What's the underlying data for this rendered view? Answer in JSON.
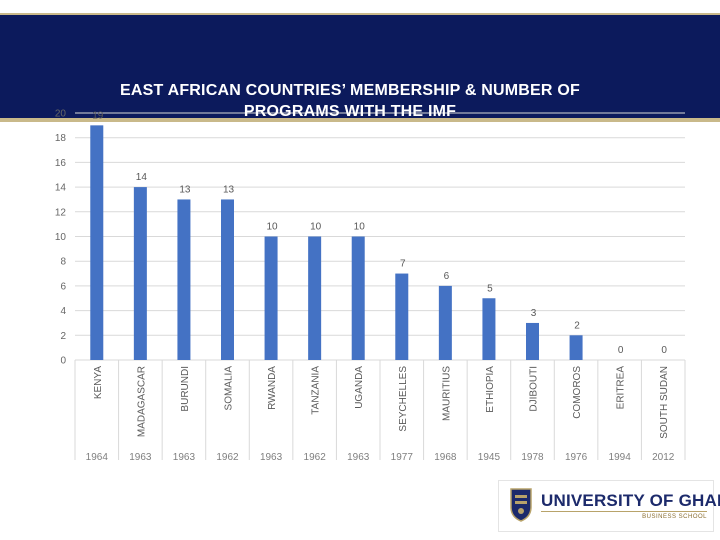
{
  "slide": {
    "colors": {
      "banner": "#0c1a5c",
      "bar": "#4472c4",
      "accent": "#c9b98a"
    }
  },
  "logo": {
    "name": "UNIVERSITY OF GHANA",
    "subtitle": "BUSINESS SCHOOL"
  },
  "chart_data": {
    "type": "bar",
    "title": "EAST AFRICAN COUNTRIES’ MEMBERSHIP & NUMBER OF PROGRAMS WITH THE IMF",
    "categories": [
      "KENYA",
      "MADAGASCAR",
      "BURUNDI",
      "SOMALIA",
      "RWANDA",
      "TANZANIA",
      "UGANDA",
      "SEYCHELLES",
      "MAURITIUS",
      "ETHIOPIA",
      "DJIBOUTI",
      "COMOROS",
      "ERITREA",
      "SOUTH SUDAN"
    ],
    "values": [
      19,
      14,
      13,
      13,
      10,
      10,
      10,
      7,
      6,
      5,
      3,
      2,
      0,
      0
    ],
    "value_labels": [
      "19",
      "14",
      "13",
      "13",
      "10",
      "10",
      "10",
      "7",
      "6",
      "5",
      "3",
      "2",
      "0",
      "0"
    ],
    "membership_years": [
      "1964",
      "1963",
      "1963",
      "1962",
      "1963",
      "1962",
      "1963",
      "1977",
      "1968",
      "1945",
      "1978",
      "1976",
      "1994",
      "2012"
    ],
    "ylim": [
      0,
      20
    ],
    "yticks": [
      "0",
      "2",
      "4",
      "6",
      "8",
      "10",
      "12",
      "14",
      "16",
      "18",
      "20"
    ],
    "xlabel": "",
    "ylabel": "",
    "grid": true
  }
}
